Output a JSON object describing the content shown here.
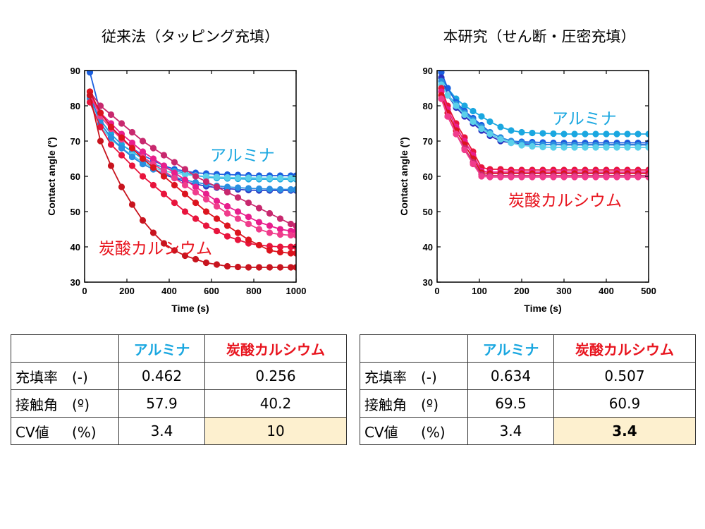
{
  "colors": {
    "alumina": "#1aa7e0",
    "calcium": "#e8141e",
    "highlight": "#fdf0cf"
  },
  "left": {
    "title": "従来法（タッピング充填）",
    "annot_alumina": "アルミナ",
    "annot_calcium": "炭酸カルシウム"
  },
  "right": {
    "title": "本研究（せん断・圧密充填）",
    "annot_alumina": "アルミナ",
    "annot_calcium": "炭酸カルシウム"
  },
  "chart_data": [
    {
      "type": "line",
      "title": "従来法（タッピング充填）",
      "xlabel": "Time (s)",
      "ylabel": "Contact angle (°)",
      "xlim": [
        0,
        1000
      ],
      "ylim": [
        30,
        90
      ],
      "xticks": [
        0,
        200,
        400,
        600,
        800,
        1000
      ],
      "yticks": [
        30,
        40,
        50,
        60,
        70,
        80,
        90
      ],
      "series": [
        {
          "color": "#1a5fe0",
          "x": [
            25,
            75,
            125,
            175,
            225,
            275,
            325,
            375,
            425,
            475,
            525,
            575,
            625,
            675,
            725,
            775,
            825,
            875,
            925,
            975,
            1000
          ],
          "y": [
            89.5,
            78,
            74,
            71,
            68,
            66,
            64.5,
            63,
            62,
            61.5,
            61,
            60.8,
            60.6,
            60.5,
            60.4,
            60.3,
            60.2,
            60.2,
            60.2,
            60.2,
            60.2
          ]
        },
        {
          "color": "#1aa7e0",
          "x": [
            25,
            75,
            125,
            175,
            225,
            275,
            325,
            375,
            425,
            475,
            525,
            575,
            625,
            675,
            725,
            775,
            825,
            875,
            925,
            975,
            1000
          ],
          "y": [
            82,
            76,
            72,
            69,
            67,
            65,
            63.5,
            62.5,
            61.5,
            61,
            60.2,
            59.8,
            59.5,
            59.4,
            59.3,
            59.2,
            59.2,
            59.2,
            59.2,
            59.2,
            59.2
          ]
        },
        {
          "color": "#5bd0ea",
          "x": [
            25,
            75,
            125,
            175,
            225,
            275,
            325,
            375,
            425,
            475,
            525,
            575,
            625,
            675,
            725,
            775,
            825,
            875,
            925,
            975,
            1000
          ],
          "y": [
            81,
            74,
            70.5,
            68,
            66,
            64,
            62.5,
            61.5,
            61,
            60.5,
            60.2,
            60,
            59.8,
            59.7,
            59.6,
            59.6,
            59.5,
            59.5,
            59.5,
            59.5,
            59.5
          ]
        },
        {
          "color": "#2a40c8",
          "x": [
            25,
            75,
            125,
            175,
            225,
            275,
            325,
            375,
            425,
            475,
            525,
            575,
            625,
            675,
            725,
            775,
            825,
            875,
            925,
            975,
            1000
          ],
          "y": [
            83,
            75,
            71,
            68,
            65.5,
            63.5,
            62,
            60.5,
            59.5,
            58.5,
            57.8,
            57.2,
            56.8,
            56.5,
            56.3,
            56.1,
            56,
            56,
            56,
            56,
            56
          ]
        },
        {
          "color": "#2a8fe0",
          "x": [
            25,
            75,
            125,
            175,
            225,
            275,
            325,
            375,
            425,
            475,
            525,
            575,
            625,
            675,
            725,
            775,
            825,
            875,
            925,
            975,
            1000
          ],
          "y": [
            82.5,
            75,
            71,
            68,
            65.5,
            63.5,
            62,
            60.8,
            59.8,
            59,
            58.3,
            57.8,
            57.3,
            57,
            56.8,
            56.6,
            56.5,
            56.4,
            56.3,
            56.3,
            56.3
          ]
        },
        {
          "color": "#c8286e",
          "x": [
            25,
            75,
            125,
            175,
            225,
            275,
            325,
            375,
            425,
            475,
            525,
            575,
            625,
            675,
            725,
            775,
            825,
            875,
            925,
            975,
            1000
          ],
          "y": [
            84,
            80,
            77.5,
            75,
            72.5,
            70,
            68,
            66,
            64,
            62,
            60,
            58.5,
            57,
            55.5,
            54,
            52.5,
            51,
            49.5,
            48,
            46.5,
            46
          ]
        },
        {
          "color": "#e81e8c",
          "x": [
            25,
            75,
            125,
            175,
            225,
            275,
            325,
            375,
            425,
            475,
            525,
            575,
            625,
            675,
            725,
            775,
            825,
            875,
            925,
            975,
            1000
          ],
          "y": [
            83,
            78,
            75,
            72,
            69.5,
            67,
            65,
            63,
            61,
            59,
            57,
            55,
            53,
            51.5,
            50,
            48.5,
            47,
            46,
            45,
            44.5,
            44.5
          ]
        },
        {
          "color": "#f03c8c",
          "x": [
            25,
            75,
            125,
            175,
            225,
            275,
            325,
            375,
            425,
            475,
            525,
            575,
            625,
            675,
            725,
            775,
            825,
            875,
            925,
            975,
            1000
          ],
          "y": [
            83,
            77,
            73.5,
            70.5,
            68,
            65.5,
            63.5,
            61.5,
            59.5,
            57.5,
            55.5,
            53.5,
            51.5,
            49.5,
            48,
            46.5,
            45,
            44,
            43.5,
            43.3,
            43.3
          ]
        },
        {
          "color": "#e8143c",
          "x": [
            25,
            75,
            125,
            175,
            225,
            275,
            325,
            375,
            425,
            475,
            525,
            575,
            625,
            675,
            725,
            775,
            825,
            875,
            925,
            975,
            1000
          ],
          "y": [
            81,
            74,
            69,
            66,
            63,
            60,
            57.5,
            55,
            52.5,
            50,
            48,
            46,
            44.5,
            43,
            42,
            41,
            40.5,
            40.2,
            40,
            40,
            40
          ]
        },
        {
          "color": "#dc141e",
          "x": [
            25,
            75,
            125,
            175,
            225,
            275,
            325,
            375,
            425,
            475,
            525,
            575,
            625,
            675,
            725,
            775,
            825,
            875,
            925,
            975,
            1000
          ],
          "y": [
            84,
            78,
            74,
            71,
            68,
            65,
            62.5,
            60,
            57.5,
            55,
            52.5,
            50,
            48,
            46,
            44,
            42,
            40.5,
            39,
            38.5,
            38.2,
            38.2
          ]
        },
        {
          "color": "#c8141e",
          "x": [
            25,
            75,
            125,
            175,
            225,
            275,
            325,
            375,
            425,
            475,
            525,
            575,
            625,
            675,
            725,
            775,
            825,
            875,
            925,
            975,
            1000
          ],
          "y": [
            83,
            70,
            63,
            57,
            52,
            47.5,
            44,
            41,
            39,
            37.5,
            36.5,
            35.5,
            35,
            34.5,
            34.3,
            34.2,
            34.2,
            34.2,
            34.2,
            34.2,
            34.2
          ]
        }
      ]
    },
    {
      "type": "line",
      "title": "本研究（せん断・圧密充填）",
      "xlabel": "Time (s)",
      "ylabel": "Contact angle (°)",
      "xlim": [
        0,
        500
      ],
      "ylim": [
        30,
        90
      ],
      "xticks": [
        0,
        100,
        200,
        300,
        400,
        500
      ],
      "yticks": [
        30,
        40,
        50,
        60,
        70,
        80,
        90
      ],
      "series": [
        {
          "color": "#1aa7e0",
          "x": [
            10,
            25,
            45,
            65,
            85,
            105,
            125,
            150,
            175,
            200,
            225,
            250,
            275,
            300,
            325,
            350,
            375,
            400,
            425,
            450,
            475,
            500
          ],
          "y": [
            88,
            85,
            82,
            80,
            78.5,
            77,
            75.5,
            74,
            73,
            72.5,
            72.3,
            72.2,
            72.1,
            72,
            72,
            72,
            72,
            72,
            72,
            72,
            72,
            72
          ]
        },
        {
          "color": "#1a5fe0",
          "x": [
            10,
            25,
            45,
            65,
            85,
            105,
            125,
            150,
            175,
            200,
            225,
            250,
            275,
            300,
            325,
            350,
            375,
            400,
            425,
            450,
            475,
            500
          ],
          "y": [
            89.5,
            85,
            81,
            78.5,
            76.5,
            74.5,
            72.5,
            71,
            70,
            69.8,
            69.7,
            69.6,
            69.5,
            69.5,
            69.5,
            69.5,
            69.5,
            69.5,
            69.5,
            69.5,
            69.5,
            69.5
          ]
        },
        {
          "color": "#2a30c0",
          "x": [
            10,
            25,
            45,
            65,
            85,
            105,
            125,
            150,
            175,
            200,
            225,
            250,
            275,
            300,
            325,
            350,
            375,
            400,
            425,
            450,
            475,
            500
          ],
          "y": [
            88,
            83,
            79.5,
            77,
            75,
            73,
            71.5,
            70,
            69.5,
            69.2,
            69,
            69,
            69,
            69,
            69,
            69,
            69,
            69,
            69,
            69,
            69,
            69
          ]
        },
        {
          "color": "#2a8fe0",
          "x": [
            10,
            25,
            45,
            65,
            85,
            105,
            125,
            150,
            175,
            200,
            225,
            250,
            275,
            300,
            325,
            350,
            375,
            400,
            425,
            450,
            475,
            500
          ],
          "y": [
            87,
            83,
            80.5,
            78,
            76,
            74,
            72.5,
            71,
            70,
            69.5,
            69.2,
            69,
            69,
            68.9,
            68.9,
            68.9,
            68.9,
            68.9,
            68.9,
            68.9,
            68.9,
            68.9
          ]
        },
        {
          "color": "#5bd0ea",
          "x": [
            10,
            25,
            45,
            65,
            85,
            105,
            125,
            150,
            175,
            200,
            225,
            250,
            275,
            300,
            325,
            350,
            375,
            400,
            425,
            450,
            475,
            500
          ],
          "y": [
            86,
            83,
            80,
            77.5,
            75.5,
            73.5,
            72,
            70.5,
            69.5,
            68.8,
            68.5,
            68.3,
            68.2,
            68.2,
            68.2,
            68.2,
            68.2,
            68.2,
            68.2,
            68.2,
            68.2,
            68.2
          ]
        },
        {
          "color": "#e8143c",
          "x": [
            10,
            25,
            45,
            65,
            85,
            105,
            125,
            150,
            175,
            200,
            225,
            250,
            275,
            300,
            325,
            350,
            375,
            400,
            425,
            450,
            475,
            500
          ],
          "y": [
            85,
            80,
            75,
            71,
            67,
            62.5,
            62,
            62,
            61.8,
            61.8,
            61.8,
            61.8,
            61.8,
            61.8,
            61.8,
            61.8,
            61.8,
            61.8,
            61.8,
            61.8,
            61.8,
            61.8
          ]
        },
        {
          "color": "#e81e8c",
          "x": [
            10,
            25,
            45,
            65,
            85,
            105,
            125,
            150,
            175,
            200,
            225,
            250,
            275,
            300,
            325,
            350,
            375,
            400,
            425,
            450,
            475,
            500
          ],
          "y": [
            84,
            79,
            74,
            70,
            66,
            61.5,
            61.2,
            61.2,
            61.2,
            61.2,
            61.2,
            61.2,
            61.2,
            61.2,
            61.2,
            61.2,
            61.2,
            61.2,
            61.2,
            61.2,
            61.2,
            61.2
          ]
        },
        {
          "color": "#dc141e",
          "x": [
            10,
            25,
            45,
            65,
            85,
            105,
            125,
            150,
            175,
            200,
            225,
            250,
            275,
            300,
            325,
            350,
            375,
            400,
            425,
            450,
            475,
            500
          ],
          "y": [
            83,
            78,
            73,
            69,
            65,
            61,
            60.8,
            60.8,
            60.8,
            60.8,
            60.8,
            60.8,
            60.8,
            60.8,
            60.8,
            60.8,
            60.8,
            60.8,
            60.8,
            60.8,
            60.8,
            60.8
          ]
        },
        {
          "color": "#c8286e",
          "x": [
            10,
            25,
            45,
            65,
            85,
            105,
            125,
            150,
            175,
            200,
            225,
            250,
            275,
            300,
            325,
            350,
            375,
            400,
            425,
            450,
            475,
            500
          ],
          "y": [
            82,
            77,
            72,
            68,
            64,
            60.5,
            60.2,
            60.2,
            60.2,
            60.2,
            60.2,
            60.2,
            60.2,
            60.2,
            60.2,
            60.2,
            60.2,
            60.2,
            60.2,
            60.2,
            60.2,
            60.2
          ]
        },
        {
          "color": "#f03c8c",
          "x": [
            10,
            25,
            45,
            65,
            85,
            105,
            125,
            150,
            175,
            200,
            225,
            250,
            275,
            300,
            325,
            350,
            375,
            400,
            425,
            450,
            475,
            500
          ],
          "y": [
            82,
            77,
            72,
            67.5,
            63.5,
            60,
            59.8,
            59.8,
            59.8,
            59.8,
            59.8,
            59.8,
            59.8,
            59.8,
            59.8,
            59.8,
            59.8,
            59.8,
            59.8,
            59.8,
            59.8,
            59.8
          ]
        }
      ]
    }
  ],
  "tables": [
    {
      "headers": [
        "",
        "アルミナ",
        "炭酸カルシウム"
      ],
      "rows": [
        {
          "label": "充填率",
          "unit": "(-)",
          "alumina": "0.462",
          "calcium": "0.256"
        },
        {
          "label": "接触角",
          "unit": "(º)",
          "alumina": "57.9",
          "calcium": "40.2"
        },
        {
          "label": "CV値",
          "unit": "(%)",
          "alumina": "3.4",
          "calcium": "10"
        }
      ]
    },
    {
      "headers": [
        "",
        "アルミナ",
        "炭酸カルシウム"
      ],
      "rows": [
        {
          "label": "充填率",
          "unit": "(-)",
          "alumina": "0.634",
          "calcium": "0.507"
        },
        {
          "label": "接触角",
          "unit": "(º)",
          "alumina": "69.5",
          "calcium": "60.9"
        },
        {
          "label": "CV値",
          "unit": "(%)",
          "alumina": "3.4",
          "calcium": "3.4"
        }
      ]
    }
  ]
}
